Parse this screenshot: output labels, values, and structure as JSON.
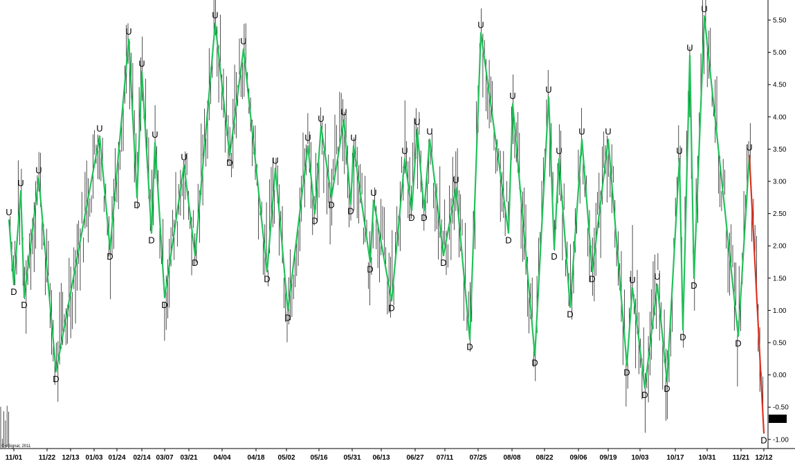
{
  "copyright": "© eSignal, 2011",
  "colors": {
    "bars": "#000000",
    "zigzag_up": "#22c05a",
    "zigzag_down": "#e03020",
    "last_value_bg": "#000000",
    "last_value_fg": "#ffffff"
  },
  "chart_data": {
    "type": "line",
    "description_of_marks": "price bars (OHLC) with zigzag swing line labeled U/D",
    "ylim": [
      -1.1,
      5.8
    ],
    "yticks": [
      "5.50",
      "5.00",
      "4.50",
      "4.00",
      "3.50",
      "3.00",
      "2.50",
      "2.00",
      "1.50",
      "1.00",
      "0.50",
      "0.00",
      "-0.50",
      "-1.00"
    ],
    "ytick_values": [
      5.5,
      5.0,
      4.5,
      4.0,
      3.5,
      3.0,
      2.5,
      2.0,
      1.5,
      1.0,
      0.5,
      0.0,
      -0.5,
      -1.0
    ],
    "xticks": [
      "11/01",
      "11/22",
      "12/13",
      "01/03",
      "01/24",
      "02/14",
      "03/07",
      "03/21",
      "04/04",
      "04/18",
      "05/02",
      "05/16",
      "05/31",
      "06/13",
      "06/27",
      "07/11",
      "07/25",
      "08/08",
      "08/22",
      "09/06",
      "09/19",
      "10/03",
      "10/17",
      "10/31",
      "11/21",
      "12/12"
    ],
    "last_value": "-0.68",
    "last_value_num": -0.68,
    "swings": [
      {
        "label": "U",
        "v": 2.4
      },
      {
        "label": "D",
        "v": 1.4
      },
      {
        "label": "U",
        "v": 2.85
      },
      {
        "label": "D",
        "v": 1.2
      },
      {
        "label": "U",
        "v": 3.05
      },
      {
        "label": "D",
        "v": 0.05
      },
      {
        "label": "U",
        "v": 3.7
      },
      {
        "label": "D",
        "v": 1.95
      },
      {
        "label": "U",
        "v": 5.2
      },
      {
        "label": "D",
        "v": 2.75
      },
      {
        "label": "U",
        "v": 4.7
      },
      {
        "label": "D",
        "v": 2.2
      },
      {
        "label": "U",
        "v": 3.6
      },
      {
        "label": "D",
        "v": 1.2
      },
      {
        "label": "U",
        "v": 3.25
      },
      {
        "label": "D",
        "v": 1.85
      },
      {
        "label": "U",
        "v": 5.45
      },
      {
        "label": "D",
        "v": 3.4
      },
      {
        "label": "U",
        "v": 5.05
      },
      {
        "label": "D",
        "v": 1.6
      },
      {
        "label": "U",
        "v": 3.2
      },
      {
        "label": "D",
        "v": 1.0
      },
      {
        "label": "U",
        "v": 3.55
      },
      {
        "label": "D",
        "v": 2.5
      },
      {
        "label": "U",
        "v": 3.85
      },
      {
        "label": "D",
        "v": 2.75
      },
      {
        "label": "U",
        "v": 3.95
      },
      {
        "label": "D",
        "v": 2.65
      },
      {
        "label": "U",
        "v": 3.55
      },
      {
        "label": "D",
        "v": 1.75
      },
      {
        "label": "U",
        "v": 2.7
      },
      {
        "label": "D",
        "v": 1.15
      },
      {
        "label": "U",
        "v": 3.35
      },
      {
        "label": "D",
        "v": 2.55
      },
      {
        "label": "U",
        "v": 3.8
      },
      {
        "label": "D",
        "v": 2.55
      },
      {
        "label": "U",
        "v": 3.65
      },
      {
        "label": "D",
        "v": 1.85
      },
      {
        "label": "U",
        "v": 2.9
      },
      {
        "label": "D",
        "v": 0.55
      },
      {
        "label": "U",
        "v": 5.3
      },
      {
        "label": "D",
        "v": 2.2
      },
      {
        "label": "U",
        "v": 4.2
      },
      {
        "label": "D",
        "v": 0.3
      },
      {
        "label": "U",
        "v": 4.3
      },
      {
        "label": "D",
        "v": 1.95
      },
      {
        "label": "U",
        "v": 3.35
      },
      {
        "label": "D",
        "v": 1.05
      },
      {
        "label": "U",
        "v": 3.65
      },
      {
        "label": "D",
        "v": 1.6
      },
      {
        "label": "U",
        "v": 3.65
      },
      {
        "label": "D",
        "v": 0.15
      },
      {
        "label": "U",
        "v": 1.35
      },
      {
        "label": "D",
        "v": -0.2
      },
      {
        "label": "U",
        "v": 1.4
      },
      {
        "label": "D",
        "v": -0.1
      },
      {
        "label": "U",
        "v": 3.35
      },
      {
        "label": "D",
        "v": 0.7
      },
      {
        "label": "U",
        "v": 4.95
      },
      {
        "label": "D",
        "v": 1.5
      },
      {
        "label": "U",
        "v": 5.55
      },
      {
        "label": "D",
        "v": 0.6
      },
      {
        "label": "U",
        "v": 3.4
      },
      {
        "label": "D",
        "v": -0.9
      }
    ]
  }
}
